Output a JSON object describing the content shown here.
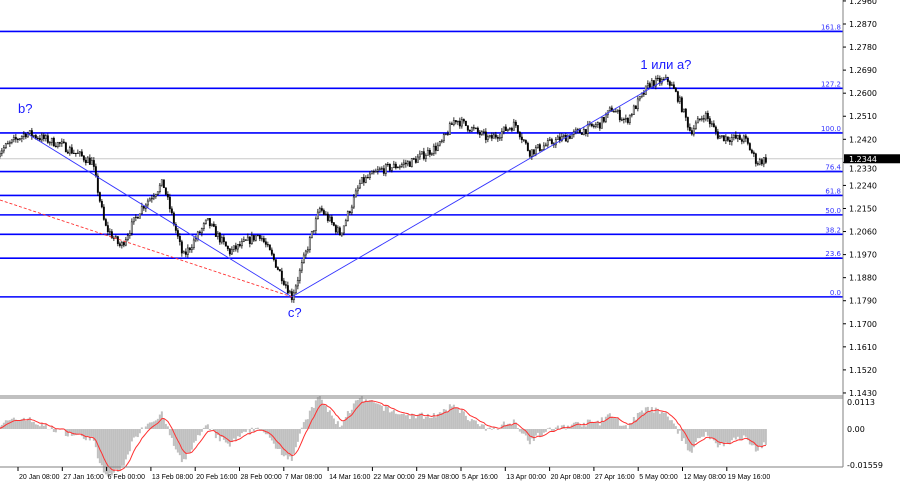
{
  "chart_data": {
    "type": "candlestick",
    "title": "",
    "price_axis": {
      "ticks": [
        "1.2960",
        "1.2870",
        "1.2780",
        "1.2690",
        "1.2600",
        "1.2510",
        "1.2420",
        "1.2330",
        "1.2240",
        "1.2150",
        "1.2060",
        "1.1970",
        "1.1880",
        "1.1790",
        "1.1700",
        "1.1610",
        "1.1520",
        "1.1430"
      ],
      "range": [
        1.143,
        1.296
      ]
    },
    "current_price": "1.2344",
    "time_axis": {
      "ticks": [
        "20 Jan 08:00",
        "27 Jan 16:00",
        "6 Feb 00:00",
        "13 Feb 08:00",
        "20 Feb 16:00",
        "28 Feb 00:00",
        "7 Mar 08:00",
        "14 Mar 16:00",
        "22 Mar 00:00",
        "29 Mar 08:00",
        "5 Apr 16:00",
        "13 Apr 00:00",
        "20 Apr 08:00",
        "27 Apr 16:00",
        "5 May 00:00",
        "12 May 08:00",
        "19 May 16:00"
      ]
    },
    "price_path": [
      [
        "17 Jan 00:00",
        1.237
      ],
      [
        "21 Jan 16:00",
        1.2445
      ],
      [
        "27 Jan 08:00",
        1.24
      ],
      [
        "3 Feb 00:00",
        1.233
      ],
      [
        "5 Feb 16:00",
        1.208
      ],
      [
        "8 Feb 08:00",
        1.2
      ],
      [
        "11 Feb 16:00",
        1.215
      ],
      [
        "15 Feb 08:00",
        1.225
      ],
      [
        "18 Feb 16:00",
        1.196
      ],
      [
        "22 Feb 16:00",
        1.21
      ],
      [
        "26 Feb 08:00",
        1.198
      ],
      [
        "3 Mar 08:00",
        1.205
      ],
      [
        "5 Mar 16:00",
        1.195
      ],
      [
        "8 Mar 16:00",
        1.1805
      ],
      [
        "13 Mar 08:00",
        1.215
      ],
      [
        "16 Mar 16:00",
        1.205
      ],
      [
        "20 Mar 00:00",
        1.225
      ],
      [
        "23 Mar 08:00",
        1.23
      ],
      [
        "28 Mar 08:00",
        1.233
      ],
      [
        "2 Apr 08:00",
        1.24
      ],
      [
        "4 Apr 16:00",
        1.25
      ],
      [
        "10 Apr 08:00",
        1.242
      ],
      [
        "14 Apr 16:00",
        1.248
      ],
      [
        "17 Apr 00:00",
        1.237
      ],
      [
        "22 Apr 00:00",
        1.242
      ],
      [
        "28 Apr 16:00",
        1.248
      ],
      [
        "30 Apr 16:00",
        1.254
      ],
      [
        "3 May 00:00",
        1.249
      ],
      [
        "7 May 00:00",
        1.264
      ],
      [
        "10 May 00:00",
        1.265
      ],
      [
        "11 May 16:00",
        1.258
      ],
      [
        "13 May 16:00",
        1.245
      ],
      [
        "16 May 00:00",
        1.252
      ],
      [
        "18 May 08:00",
        1.243
      ],
      [
        "22 May 16:00",
        1.242
      ],
      [
        "24 May 16:00",
        1.233
      ],
      [
        "26 May 08:00",
        1.2344
      ]
    ],
    "fibonacci_levels": [
      {
        "label": "161.8",
        "price": 1.2841
      },
      {
        "label": "127.2",
        "price": 1.2619
      },
      {
        "label": "100.0",
        "price": 1.2445
      },
      {
        "label": "76.4",
        "price": 1.2294
      },
      {
        "label": "61.8",
        "price": 1.2201
      },
      {
        "label": "50.0",
        "price": 1.2125
      },
      {
        "label": "38.2",
        "price": 1.2049
      },
      {
        "label": "23.6",
        "price": 1.1956
      },
      {
        "label": "0.0",
        "price": 1.1805
      }
    ],
    "wave_labels": [
      {
        "text": "b?",
        "time": "21 Jan 16:00",
        "price": 1.2445
      },
      {
        "text": "c?",
        "time": "8 Mar 16:00",
        "price": 1.1805
      },
      {
        "text": "1 или a?",
        "time": "10 May 00:00",
        "price": 1.266
      }
    ],
    "indicator": {
      "ticks": [
        "0.0113",
        "0.00",
        "-0.01559"
      ],
      "range": [
        -0.01559,
        0.0113
      ]
    },
    "colors": {
      "fib": "#0000ff",
      "wave_line": "#3333ff",
      "dashed_line": "#ff3333",
      "candles": "#000000",
      "histogram": "#c0c0c0",
      "signal": "#ff3030",
      "current_price_bg": "#000000"
    }
  }
}
